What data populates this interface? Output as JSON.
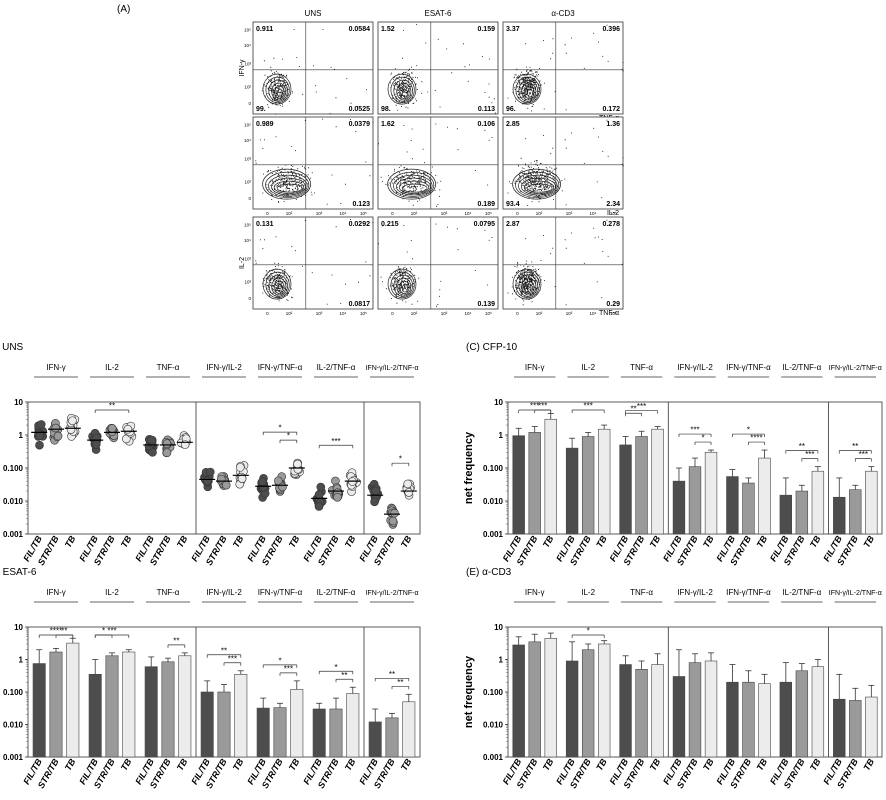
{
  "figure_label": "(A)",
  "flow": {
    "columns": [
      "UNS",
      "ESAT-6",
      "α-CD3"
    ],
    "rows": [
      {
        "ylabel": "IFN-γ",
        "xlabel": "TNF-α",
        "quadrants": [
          [
            "0.911",
            "0.0584",
            "99.",
            "0.0525"
          ],
          [
            "1.52",
            "0.159",
            "98.",
            "0.113"
          ],
          [
            "3.37",
            "0.396",
            "96.",
            "0.172"
          ]
        ]
      },
      {
        "ylabel": "",
        "xlabel": "IL-2",
        "quadrants": [
          [
            "0.989",
            "0.0379",
            "",
            "0.123"
          ],
          [
            "1.62",
            "0.106",
            "",
            "0.189"
          ],
          [
            "2.85",
            "1.36",
            "93.4",
            "2.34"
          ]
        ]
      },
      {
        "ylabel": "IL-2",
        "xlabel": "TNF-α",
        "quadrants": [
          [
            "0.131",
            "0.0292",
            "",
            "0.0817"
          ],
          [
            "0.215",
            "0.0795",
            "",
            "0.139"
          ],
          [
            "2.87",
            "0.278",
            "",
            "0.29"
          ]
        ]
      }
    ],
    "axis_ticks": [
      "0",
      "10²",
      "10³",
      "10⁴",
      "10⁵"
    ]
  },
  "panels": [
    {
      "id": "B",
      "title": "(B) UNS",
      "ylabel": "frequency"
    },
    {
      "id": "C",
      "title": "(C) CFP-10",
      "ylabel": "net frequency"
    },
    {
      "id": "D",
      "title": "(D) ESAT-6",
      "ylabel": "net frequency"
    },
    {
      "id": "E",
      "title": "(E) α-CD3",
      "ylabel": "net frequency"
    }
  ],
  "chart_data": [
    {
      "type": "scatter",
      "title": "(B) UNS",
      "ylabel": "frequency",
      "yscale": "log",
      "ylim": [
        0.001,
        10
      ],
      "yticks": [
        "10",
        "1",
        "0.100",
        "0.010",
        "0.001"
      ],
      "groups": [
        "IFN-γ",
        "IL-2",
        "TNF-α",
        "IFN-γ/IL-2",
        "IFN-γ/TNF-α",
        "IL-2/TNF-α",
        "IFN-γ/IL-2/TNF-α"
      ],
      "categories": [
        "FIL/TB",
        "STR/TB",
        "TB"
      ],
      "medians": [
        [
          1.2,
          1.5,
          1.6
        ],
        [
          0.7,
          1.2,
          1.3
        ],
        [
          0.5,
          0.5,
          0.6
        ],
        [
          0.045,
          0.04,
          0.06
        ],
        [
          0.028,
          0.03,
          0.1
        ],
        [
          0.012,
          0.02,
          0.04
        ],
        [
          0.015,
          0.004,
          0.02
        ]
      ],
      "significance": [
        {
          "group": 1,
          "from": 0,
          "to": 2,
          "label": "**"
        },
        {
          "group": 4,
          "from": 0,
          "to": 2,
          "label": "*"
        },
        {
          "group": 4,
          "from": 1,
          "to": 2,
          "label": "*"
        },
        {
          "group": 5,
          "from": 0,
          "to": 2,
          "label": "***"
        },
        {
          "group": 6,
          "from": 1,
          "to": 2,
          "label": "*"
        }
      ]
    },
    {
      "type": "bar",
      "title": "(C) CFP-10",
      "ylabel": "net frequency",
      "yscale": "log",
      "ylim": [
        0.001,
        10
      ],
      "yticks": [
        "10",
        "1",
        "0.100",
        "0.010",
        "0.001"
      ],
      "groups": [
        "IFN-γ",
        "IL-2",
        "TNF-α",
        "IFN-γ/IL-2",
        "IFN-γ/TNF-α",
        "IL-2/TNF-α",
        "IFN-γ/IL-2/TNF-α"
      ],
      "categories": [
        "FIL/TB",
        "STR/TB",
        "TB"
      ],
      "values": [
        [
          0.95,
          1.2,
          3.0
        ],
        [
          0.4,
          0.9,
          1.5
        ],
        [
          0.5,
          0.9,
          1.5
        ],
        [
          0.04,
          0.11,
          0.3
        ],
        [
          0.055,
          0.035,
          0.2
        ],
        [
          0.015,
          0.02,
          0.08
        ],
        [
          0.013,
          0.022,
          0.08
        ]
      ],
      "errors": [
        [
          1.6,
          1.8,
          4.5
        ],
        [
          0.8,
          1.2,
          2.0
        ],
        [
          0.9,
          1.3,
          1.8
        ],
        [
          0.1,
          0.2,
          0.35
        ],
        [
          0.09,
          0.05,
          0.35
        ],
        [
          0.05,
          0.03,
          0.11
        ],
        [
          0.05,
          0.03,
          0.11
        ]
      ],
      "significance": [
        {
          "group": 0,
          "from": 0,
          "to": 2,
          "label": "***"
        },
        {
          "group": 0,
          "from": 1,
          "to": 2,
          "label": "***"
        },
        {
          "group": 1,
          "from": 0,
          "to": 2,
          "label": "***"
        },
        {
          "group": 2,
          "from": 0,
          "to": 2,
          "label": "***"
        },
        {
          "group": 2,
          "from": 0,
          "to": 1,
          "label": "**"
        },
        {
          "group": 3,
          "from": 0,
          "to": 2,
          "label": "***"
        },
        {
          "group": 3,
          "from": 1,
          "to": 2,
          "label": "*"
        },
        {
          "group": 4,
          "from": 0,
          "to": 2,
          "label": "*"
        },
        {
          "group": 4,
          "from": 1,
          "to": 2,
          "label": "****"
        },
        {
          "group": 5,
          "from": 0,
          "to": 2,
          "label": "**"
        },
        {
          "group": 5,
          "from": 1,
          "to": 2,
          "label": "***"
        },
        {
          "group": 6,
          "from": 0,
          "to": 2,
          "label": "**"
        },
        {
          "group": 6,
          "from": 1,
          "to": 2,
          "label": "***"
        }
      ]
    },
    {
      "type": "bar",
      "title": "(D) ESAT-6",
      "ylabel": "net frequency",
      "yscale": "log",
      "ylim": [
        0.001,
        10
      ],
      "yticks": [
        "10",
        "1",
        "0.100",
        "0.010",
        "0.001"
      ],
      "groups": [
        "IFN-γ",
        "IL-2",
        "TNF-α",
        "IFN-γ/IL-2",
        "IFN-γ/TNF-α",
        "IL-2/TNF-α",
        "IFN-γ/IL-2/TNF-α"
      ],
      "categories": [
        "FIL/TB",
        "STR/TB",
        "TB"
      ],
      "values": [
        [
          0.75,
          1.7,
          3.2
        ],
        [
          0.35,
          1.3,
          1.7
        ],
        [
          0.6,
          0.85,
          1.3
        ],
        [
          0.1,
          0.1,
          0.35
        ],
        [
          0.032,
          0.033,
          0.12
        ],
        [
          0.03,
          0.03,
          0.09
        ],
        [
          0.012,
          0.016,
          0.05
        ]
      ],
      "errors": [
        [
          2.0,
          2.2,
          4.5
        ],
        [
          1.0,
          1.6,
          2.0
        ],
        [
          1.2,
          1.1,
          1.6
        ],
        [
          0.22,
          0.17,
          0.45
        ],
        [
          0.065,
          0.045,
          0.22
        ],
        [
          0.045,
          0.065,
          0.14
        ],
        [
          0.03,
          0.022,
          0.085
        ]
      ],
      "significance": [
        {
          "group": 0,
          "from": 0,
          "to": 2,
          "label": "****"
        },
        {
          "group": 0,
          "from": 1,
          "to": 2,
          "label": "**"
        },
        {
          "group": 1,
          "from": 0,
          "to": 2,
          "label": "***"
        },
        {
          "group": 1,
          "from": 0,
          "to": 1,
          "label": "*"
        },
        {
          "group": 2,
          "from": 1,
          "to": 2,
          "label": "**"
        },
        {
          "group": 3,
          "from": 0,
          "to": 2,
          "label": "**"
        },
        {
          "group": 3,
          "from": 1,
          "to": 2,
          "label": "***"
        },
        {
          "group": 4,
          "from": 0,
          "to": 2,
          "label": "*"
        },
        {
          "group": 4,
          "from": 1,
          "to": 2,
          "label": "***"
        },
        {
          "group": 5,
          "from": 0,
          "to": 2,
          "label": "*"
        },
        {
          "group": 5,
          "from": 1,
          "to": 2,
          "label": "**"
        },
        {
          "group": 6,
          "from": 0,
          "to": 2,
          "label": "**"
        },
        {
          "group": 6,
          "from": 1,
          "to": 2,
          "label": "**"
        }
      ]
    },
    {
      "type": "bar",
      "title": "(E) α-CD3",
      "ylabel": "net frequency",
      "yscale": "log",
      "ylim": [
        0.001,
        10
      ],
      "yticks": [
        "10",
        "1",
        "0.100",
        "0.010",
        "0.001"
      ],
      "groups": [
        "IFN-γ",
        "IL-2",
        "TNF-α",
        "IFN-γ/IL-2",
        "IFN-γ/TNF-α",
        "IL-2/TNF-α",
        "IFN-γ/IL-2/TNF-α"
      ],
      "categories": [
        "FIL/TB",
        "STR/TB",
        "TB"
      ],
      "values": [
        [
          2.8,
          3.5,
          4.5
        ],
        [
          0.9,
          2.0,
          3.0
        ],
        [
          0.7,
          0.5,
          0.7
        ],
        [
          0.3,
          0.8,
          0.9
        ],
        [
          0.2,
          0.2,
          0.18
        ],
        [
          0.2,
          0.45,
          0.6
        ],
        [
          0.06,
          0.055,
          0.07
        ]
      ],
      "errors": [
        [
          5.0,
          6.0,
          6.5
        ],
        [
          3.5,
          3.0,
          3.8
        ],
        [
          1.3,
          0.9,
          1.5
        ],
        [
          2.0,
          1.5,
          1.6
        ],
        [
          0.7,
          0.45,
          0.35
        ],
        [
          0.8,
          0.75,
          1.0
        ],
        [
          0.35,
          0.13,
          0.16
        ]
      ],
      "significance": [
        {
          "group": 1,
          "from": 0,
          "to": 2,
          "label": "*"
        }
      ]
    }
  ],
  "colors": {
    "FIL/TB": "#4d4d4d",
    "STR/TB": "#9a9a9a",
    "TB": "#ececec"
  }
}
